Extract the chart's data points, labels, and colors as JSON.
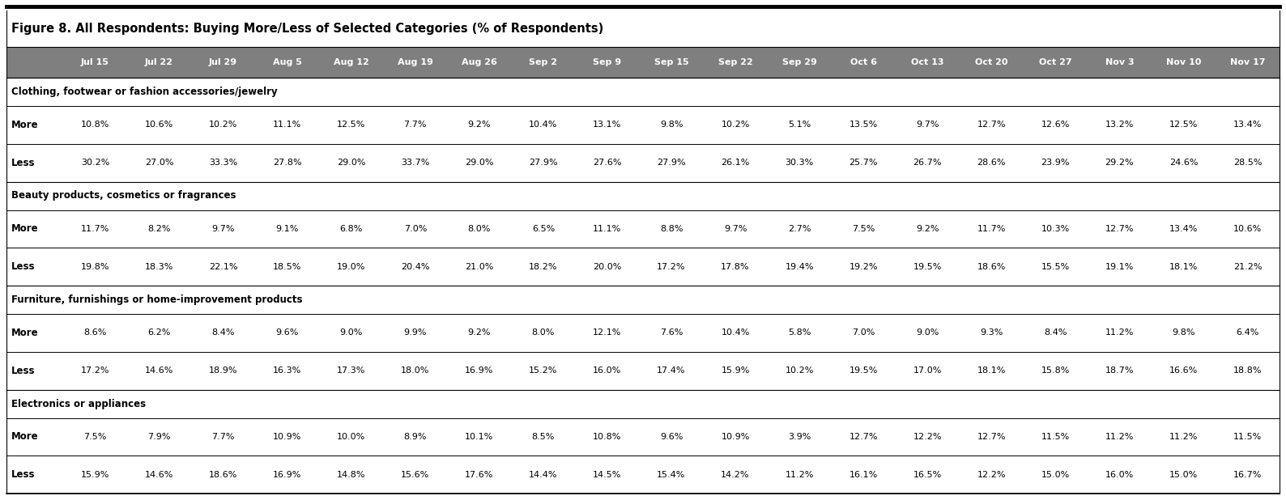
{
  "title": "Figure 8. All Respondents: Buying More/Less of Selected Categories (% of Respondents)",
  "columns": [
    "",
    "Jul 15",
    "Jul 22",
    "Jul 29",
    "Aug 5",
    "Aug 12",
    "Aug 19",
    "Aug 26",
    "Sep 2",
    "Sep 9",
    "Sep 15",
    "Sep 22",
    "Sep 29",
    "Oct 6",
    "Oct 13",
    "Oct 20",
    "Oct 27",
    "Nov 3",
    "Nov 10",
    "Nov 17"
  ],
  "sections": [
    {
      "header": "Clothing, footwear or fashion accessories/jewelry",
      "rows": [
        {
          "label": "More",
          "values": [
            "10.8%",
            "10.6%",
            "10.2%",
            "11.1%",
            "12.5%",
            "7.7%",
            "9.2%",
            "10.4%",
            "13.1%",
            "9.8%",
            "10.2%",
            "5.1%",
            "13.5%",
            "9.7%",
            "12.7%",
            "12.6%",
            "13.2%",
            "12.5%",
            "13.4%"
          ]
        },
        {
          "label": "Less",
          "values": [
            "30.2%",
            "27.0%",
            "33.3%",
            "27.8%",
            "29.0%",
            "33.7%",
            "29.0%",
            "27.9%",
            "27.6%",
            "27.9%",
            "26.1%",
            "30.3%",
            "25.7%",
            "26.7%",
            "28.6%",
            "23.9%",
            "29.2%",
            "24.6%",
            "28.5%"
          ]
        }
      ]
    },
    {
      "header": "Beauty products, cosmetics or fragrances",
      "rows": [
        {
          "label": "More",
          "values": [
            "11.7%",
            "8.2%",
            "9.7%",
            "9.1%",
            "6.8%",
            "7.0%",
            "8.0%",
            "6.5%",
            "11.1%",
            "8.8%",
            "9.7%",
            "2.7%",
            "7.5%",
            "9.2%",
            "11.7%",
            "10.3%",
            "12.7%",
            "13.4%",
            "10.6%"
          ]
        },
        {
          "label": "Less",
          "values": [
            "19.8%",
            "18.3%",
            "22.1%",
            "18.5%",
            "19.0%",
            "20.4%",
            "21.0%",
            "18.2%",
            "20.0%",
            "17.2%",
            "17.8%",
            "19.4%",
            "19.2%",
            "19.5%",
            "18.6%",
            "15.5%",
            "19.1%",
            "18.1%",
            "21.2%"
          ]
        }
      ]
    },
    {
      "header": "Furniture, furnishings or home-improvement products",
      "rows": [
        {
          "label": "More",
          "values": [
            "8.6%",
            "6.2%",
            "8.4%",
            "9.6%",
            "9.0%",
            "9.9%",
            "9.2%",
            "8.0%",
            "12.1%",
            "7.6%",
            "10.4%",
            "5.8%",
            "7.0%",
            "9.0%",
            "9.3%",
            "8.4%",
            "11.2%",
            "9.8%",
            "6.4%"
          ]
        },
        {
          "label": "Less",
          "values": [
            "17.2%",
            "14.6%",
            "18.9%",
            "16.3%",
            "17.3%",
            "18.0%",
            "16.9%",
            "15.2%",
            "16.0%",
            "17.4%",
            "15.9%",
            "10.2%",
            "19.5%",
            "17.0%",
            "18.1%",
            "15.8%",
            "18.7%",
            "16.6%",
            "18.8%"
          ]
        }
      ]
    },
    {
      "header": "Electronics or appliances",
      "rows": [
        {
          "label": "More",
          "values": [
            "7.5%",
            "7.9%",
            "7.7%",
            "10.9%",
            "10.0%",
            "8.9%",
            "10.1%",
            "8.5%",
            "10.8%",
            "9.6%",
            "10.9%",
            "3.9%",
            "12.7%",
            "12.2%",
            "12.7%",
            "11.5%",
            "11.2%",
            "11.2%",
            "11.5%"
          ]
        },
        {
          "label": "Less",
          "values": [
            "15.9%",
            "14.6%",
            "18.6%",
            "16.9%",
            "14.8%",
            "15.6%",
            "17.6%",
            "14.4%",
            "14.5%",
            "15.4%",
            "14.2%",
            "11.2%",
            "16.1%",
            "16.5%",
            "12.2%",
            "15.0%",
            "16.0%",
            "15.0%",
            "16.7%"
          ]
        }
      ]
    }
  ],
  "header_bg_color": "#7f7f7f",
  "header_text_color": "#ffffff",
  "title_fontsize": 10.5,
  "header_fontsize": 8.0,
  "cell_fontsize": 8.0,
  "section_fontsize": 8.5,
  "label_fontsize": 8.5
}
